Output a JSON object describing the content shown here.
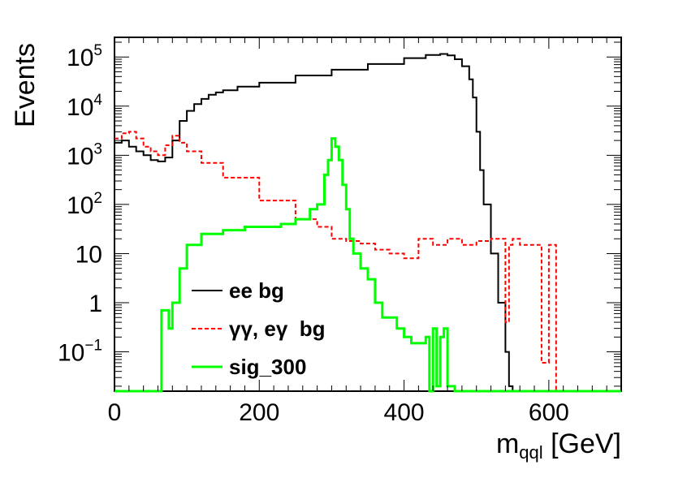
{
  "chart_data": {
    "type": "line",
    "title": "",
    "xlabel_main": "m",
    "xlabel_sub": "qql",
    "xlabel_unit": " [GeV]",
    "ylabel": "Events",
    "xlim": [
      0,
      700
    ],
    "ylim_log10": [
      -1.8,
      5.4
    ],
    "y_scale": "log",
    "x_ticks": [
      {
        "value": 0,
        "label": "0"
      },
      {
        "value": 200,
        "label": "200"
      },
      {
        "value": 400,
        "label": "400"
      },
      {
        "value": 600,
        "label": "600"
      }
    ],
    "y_ticks": [
      {
        "exp": 5,
        "base": "10",
        "sup": "5"
      },
      {
        "exp": 4,
        "base": "10",
        "sup": "4"
      },
      {
        "exp": 3,
        "base": "10",
        "sup": "3"
      },
      {
        "exp": 2,
        "base": "10",
        "sup": "2"
      },
      {
        "exp": 1,
        "base": "10",
        "sup": ""
      },
      {
        "exp": 0,
        "base": "1",
        "sup": ""
      },
      {
        "exp": -1,
        "base": "10",
        "sup": "−1"
      }
    ],
    "legend_position": "bottom-left",
    "series": [
      {
        "name": "ee bg",
        "color": "#000000",
        "style": "solid",
        "x": [
          0,
          10,
          20,
          30,
          40,
          50,
          60,
          70,
          80,
          90,
          100,
          110,
          120,
          130,
          140,
          150,
          170,
          200,
          250,
          300,
          350,
          400,
          430,
          450,
          460,
          470,
          480,
          490,
          495,
          500,
          505,
          510,
          520,
          530,
          540,
          545,
          550,
          700
        ],
        "y": [
          1800,
          2000,
          1500,
          1200,
          1000,
          800,
          750,
          900,
          2000,
          5000,
          8000,
          11000,
          14000,
          17000,
          19000,
          21000,
          25000,
          30000,
          42000,
          55000,
          72000,
          95000,
          110000,
          115000,
          108000,
          90000,
          65000,
          35000,
          15000,
          3000,
          500,
          100,
          10,
          1,
          0.1,
          0.02,
          0,
          0
        ]
      },
      {
        "name": "γγ, eγ  bg",
        "color": "#ff0000",
        "style": "dashed",
        "x": [
          0,
          10,
          20,
          30,
          40,
          50,
          60,
          70,
          80,
          90,
          100,
          120,
          150,
          200,
          250,
          280,
          300,
          320,
          340,
          360,
          380,
          400,
          420,
          440,
          460,
          480,
          500,
          520,
          540,
          545,
          550,
          560,
          580,
          590,
          600,
          610
        ],
        "y": [
          2200,
          2800,
          3000,
          2200,
          1500,
          1200,
          1000,
          1600,
          2500,
          1800,
          1200,
          700,
          350,
          120,
          50,
          35,
          20,
          18,
          16,
          12,
          10,
          8,
          20,
          15,
          20,
          15,
          18,
          20,
          0.4,
          15,
          20,
          15,
          15,
          0.06,
          15,
          0
        ]
      },
      {
        "name": "sig_300",
        "color": "#00ff00",
        "style": "solid",
        "x": [
          0,
          60,
          65,
          70,
          75,
          80,
          90,
          100,
          120,
          150,
          180,
          200,
          230,
          250,
          270,
          280,
          290,
          295,
          300,
          305,
          310,
          315,
          320,
          325,
          330,
          340,
          350,
          360,
          370,
          380,
          390,
          400,
          410,
          420,
          430,
          435,
          440,
          445,
          450,
          455,
          460,
          470,
          480,
          700
        ],
        "y": [
          0,
          0,
          0.7,
          0.7,
          0.3,
          1,
          5,
          15,
          25,
          30,
          35,
          35,
          40,
          50,
          80,
          100,
          400,
          800,
          2200,
          1500,
          800,
          250,
          80,
          20,
          10,
          5,
          3,
          1,
          0.5,
          0.5,
          0.3,
          0.2,
          0.15,
          0.15,
          0.2,
          0.01,
          0.3,
          0.02,
          0.2,
          0.3,
          0.02,
          0,
          0,
          0
        ]
      }
    ]
  }
}
